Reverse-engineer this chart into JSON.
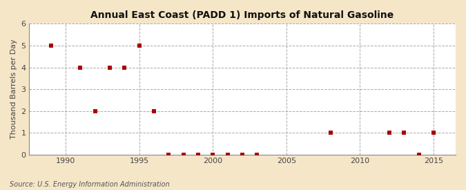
{
  "title": "Annual East Coast (PADD 1) Imports of Natural Gasoline",
  "ylabel": "Thousand Barrels per Day",
  "source_text": "Source: U.S. Energy Information Administration",
  "outer_bg": "#f5e6c8",
  "plot_bg": "#ffffff",
  "marker_color": "#aa0000",
  "marker": "s",
  "marker_size": 16,
  "xlim": [
    1987.5,
    2016.5
  ],
  "ylim": [
    0,
    6
  ],
  "yticks": [
    0,
    1,
    2,
    3,
    4,
    5,
    6
  ],
  "xticks": [
    1990,
    1995,
    2000,
    2005,
    2010,
    2015
  ],
  "x": [
    1989,
    1991,
    1992,
    1993,
    1994,
    1995,
    1996,
    1997,
    1998,
    1999,
    2000,
    2001,
    2002,
    2003,
    2008,
    2012,
    2013,
    2014,
    2015
  ],
  "y": [
    5.0,
    4.0,
    2.0,
    4.0,
    4.0,
    5.0,
    2.0,
    0.0,
    0.0,
    0.0,
    0.0,
    0.0,
    0.0,
    0.0,
    1.0,
    1.0,
    1.0,
    0.0,
    1.0
  ]
}
